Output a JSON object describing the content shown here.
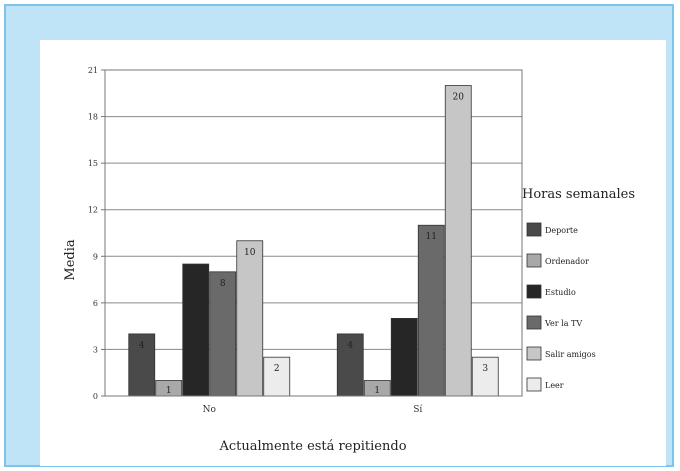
{
  "chart_data": {
    "type": "bar",
    "categories": [
      "No",
      "Sí"
    ],
    "xlabel": "Actualmente está repitiendo",
    "ylabel": "Media",
    "ylim": [
      0,
      21
    ],
    "yticks": [
      0,
      3,
      6,
      9,
      12,
      15,
      18,
      21
    ],
    "grid": true,
    "legend_title": "Horas semanales",
    "legend_position": "right",
    "series": [
      {
        "name": "Deporte",
        "color": "#4a4a4a",
        "values": [
          4,
          4
        ],
        "labels": [
          "4",
          "4"
        ]
      },
      {
        "name": "Ordenador",
        "color": "#a8a8a8",
        "values": [
          1,
          1
        ],
        "labels": [
          "1",
          "1"
        ]
      },
      {
        "name": "Estudio",
        "color": "#262626",
        "values": [
          8.5,
          5
        ],
        "labels": [
          "",
          ""
        ]
      },
      {
        "name": "Ver la TV",
        "color": "#6a6a6a",
        "values": [
          8,
          11
        ],
        "labels": [
          "8",
          "11"
        ]
      },
      {
        "name": "Salir amigos",
        "color": "#c6c6c6",
        "values": [
          10,
          20
        ],
        "labels": [
          "10",
          "20"
        ]
      },
      {
        "name": "Leer",
        "color": "#ececec",
        "values": [
          2.5,
          2.5
        ],
        "labels": [
          "2",
          "3"
        ]
      }
    ]
  }
}
